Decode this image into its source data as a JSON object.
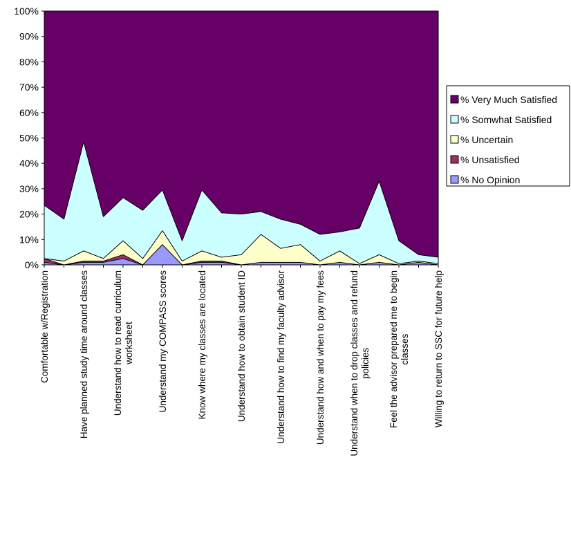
{
  "chart_data": {
    "type": "area",
    "stacked": true,
    "percent_stacked": true,
    "title": "",
    "xlabel": "",
    "ylabel": "",
    "ylim": [
      0,
      100
    ],
    "y_ticks": [
      "0%",
      "10%",
      "20%",
      "30%",
      "40%",
      "50%",
      "60%",
      "70%",
      "80%",
      "90%",
      "100%"
    ],
    "legend_position": "right",
    "categories": [
      "Comfortable w/Registration",
      "",
      "Have planned study time around classes",
      "",
      "Understand how to read curriculum worksheet",
      "",
      "Understand my COMPASS scores",
      "",
      "Know where my classes are located",
      "",
      "Understand how to obtain student ID",
      "",
      "Understand how to find my faculty advisor",
      "",
      "Understand how and when to pay my fees",
      "",
      "Understand when to drop classes and refund policies",
      "",
      "Feel the advisor prepared me to begin classes",
      "",
      "Willing to return to SSC for future help"
    ],
    "category_label_lines": [
      [
        "Comfortable w/Registration"
      ],
      [],
      [
        "Have planned study time around classes"
      ],
      [],
      [
        "Understand how to read curriculum",
        "worksheet"
      ],
      [],
      [
        "Understand my COMPASS scores"
      ],
      [],
      [
        "Know where my classes are located"
      ],
      [],
      [
        "Understand how to obtain student ID"
      ],
      [],
      [
        "Understand how to find my faculty advisor"
      ],
      [],
      [
        "Understand how and when to pay my fees"
      ],
      [],
      [
        "Understand when to drop classes and refund",
        "policies"
      ],
      [],
      [
        "Feel the advisor prepared me to begin",
        "classes"
      ],
      [],
      [
        "Willing to return to SSC for future help"
      ]
    ],
    "series": [
      {
        "name": "% No Opinion",
        "color": "#9999ff",
        "values": [
          1,
          0,
          1,
          1,
          2.5,
          0,
          8,
          0,
          1,
          1,
          0,
          1,
          1,
          1,
          0,
          1,
          0,
          1,
          0,
          1,
          0
        ]
      },
      {
        "name": "% Unsatisfied",
        "color": "#993366",
        "values": [
          1.5,
          0,
          0.5,
          0.5,
          1.5,
          0,
          0,
          0,
          0.5,
          0.5,
          0,
          0,
          0,
          0,
          0,
          0,
          0,
          0,
          0,
          0,
          0
        ]
      },
      {
        "name": "% Uncertain",
        "color": "#ffffcc",
        "values": [
          0,
          1.5,
          4,
          1,
          5.5,
          2.5,
          5.5,
          1.5,
          4,
          1.5,
          4,
          11,
          5.5,
          7,
          1.5,
          4.5,
          0.5,
          3,
          0.5,
          0.5,
          0.5
        ]
      },
      {
        "name": "% Somwhat Satisfied",
        "color": "#ccffff",
        "values": [
          21,
          16.5,
          43,
          16.5,
          17,
          19,
          16,
          8,
          24,
          17.5,
          16,
          9,
          11.5,
          8,
          10.5,
          7.5,
          14,
          29,
          9,
          2.5,
          2.5
        ]
      },
      {
        "name": "% Very Much Satisfied",
        "color": "#660066",
        "values": [
          76.5,
          82,
          51.5,
          81,
          73.5,
          78.5,
          70.5,
          90.5,
          70.5,
          79.5,
          80,
          79,
          82,
          84,
          88,
          87,
          85.5,
          67,
          90.5,
          96,
          97
        ]
      }
    ],
    "legend_order": [
      "% Very Much Satisfied",
      "% Somwhat Satisfied",
      "% Uncertain",
      "% Unsatisfied",
      "% No Opinion"
    ]
  }
}
